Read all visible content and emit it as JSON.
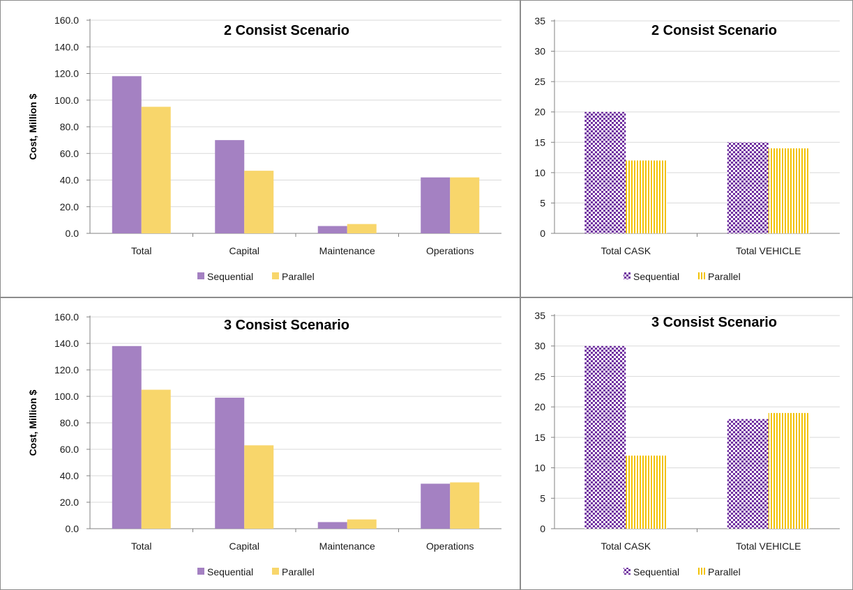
{
  "chart_data": [
    {
      "type": "bar",
      "title": "2 Consist Scenario",
      "ylabel": "Cost, Million $",
      "xlabel": "",
      "categories": [
        "Total",
        "Capital",
        "Maintenance",
        "Operations"
      ],
      "series": [
        {
          "name": "Sequential",
          "values": [
            118,
            70,
            5.5,
            42
          ],
          "color": "#a481c2",
          "pattern": "solid"
        },
        {
          "name": "Parallel",
          "values": [
            95,
            47,
            7,
            42
          ],
          "color": "#f8d66b",
          "pattern": "solid"
        }
      ],
      "ylim": [
        0,
        160
      ],
      "yticks": [
        "0.0",
        "20.0",
        "40.0",
        "60.0",
        "80.0",
        "100.0",
        "120.0",
        "140.0",
        "160.0"
      ],
      "grid": true,
      "legend_position": "bottom"
    },
    {
      "type": "bar",
      "title": "2 Consist Scenario",
      "ylabel": "",
      "xlabel": "",
      "categories": [
        "Total CASK",
        "Total VEHICLE"
      ],
      "series": [
        {
          "name": "Sequential",
          "values": [
            20,
            15
          ],
          "color": "#7030a0",
          "pattern": "checker"
        },
        {
          "name": "Parallel",
          "values": [
            12,
            14
          ],
          "color": "#f2c200",
          "pattern": "vertical-stripes"
        }
      ],
      "ylim": [
        0,
        35
      ],
      "yticks": [
        "0",
        "5",
        "10",
        "15",
        "20",
        "25",
        "30",
        "35"
      ],
      "grid": true,
      "legend_position": "bottom"
    },
    {
      "type": "bar",
      "title": "3 Consist Scenario",
      "ylabel": "Cost, Million $",
      "xlabel": "",
      "categories": [
        "Total",
        "Capital",
        "Maintenance",
        "Operations"
      ],
      "series": [
        {
          "name": "Sequential",
          "values": [
            138,
            99,
            5,
            34
          ],
          "color": "#a481c2",
          "pattern": "solid"
        },
        {
          "name": "Parallel",
          "values": [
            105,
            63,
            7,
            35
          ],
          "color": "#f8d66b",
          "pattern": "solid"
        }
      ],
      "ylim": [
        0,
        160
      ],
      "yticks": [
        "0.0",
        "20.0",
        "40.0",
        "60.0",
        "80.0",
        "100.0",
        "120.0",
        "140.0",
        "160.0"
      ],
      "grid": true,
      "legend_position": "bottom"
    },
    {
      "type": "bar",
      "title": "3 Consist Scenario",
      "ylabel": "",
      "xlabel": "",
      "categories": [
        "Total CASK",
        "Total VEHICLE"
      ],
      "series": [
        {
          "name": "Sequential",
          "values": [
            30,
            18
          ],
          "color": "#7030a0",
          "pattern": "checker"
        },
        {
          "name": "Parallel",
          "values": [
            12,
            19
          ],
          "color": "#f2c200",
          "pattern": "vertical-stripes"
        }
      ],
      "ylim": [
        0,
        35
      ],
      "yticks": [
        "0",
        "5",
        "10",
        "15",
        "20",
        "25",
        "30",
        "35"
      ],
      "grid": true,
      "legend_position": "bottom"
    }
  ]
}
